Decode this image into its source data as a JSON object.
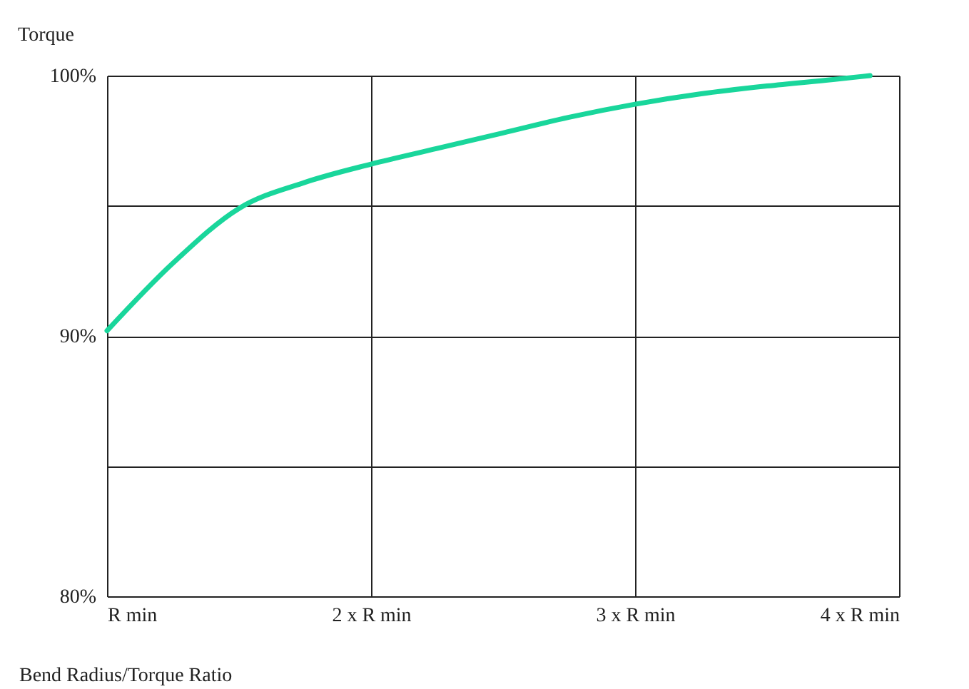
{
  "chart_data": {
    "type": "line",
    "xlabel": "Bend Radius/Torque Ratio",
    "ylabel": "Torque",
    "x": [
      1,
      1.25,
      1.5,
      1.75,
      2,
      2.25,
      2.5,
      2.75,
      3,
      3.25,
      3.5,
      3.75,
      3.89
    ],
    "series": [
      {
        "color": "#19d69b",
        "values": [
          90.2,
          92.8,
          94.9,
          95.9,
          96.6,
          97.2,
          97.8,
          98.4,
          98.9,
          99.3,
          99.6,
          99.85,
          100
        ]
      }
    ],
    "xlim": [
      1,
      4
    ],
    "xticks": [
      {
        "value": 1,
        "label": "R min"
      },
      {
        "value": 2,
        "label": "2 x R min"
      },
      {
        "value": 3,
        "label": "3 x R min"
      },
      {
        "value": 4,
        "label": "4 x R min"
      }
    ],
    "ylim": [
      80,
      100
    ],
    "yticks": [
      {
        "value": 80,
        "label": "80%"
      },
      {
        "value": 85,
        "label": null
      },
      {
        "value": 90,
        "label": "90%"
      },
      {
        "value": 95,
        "label": null
      },
      {
        "value": 100,
        "label": "100%"
      }
    ],
    "grid": true,
    "legend": false,
    "marker": "none",
    "line_style": "solid"
  }
}
